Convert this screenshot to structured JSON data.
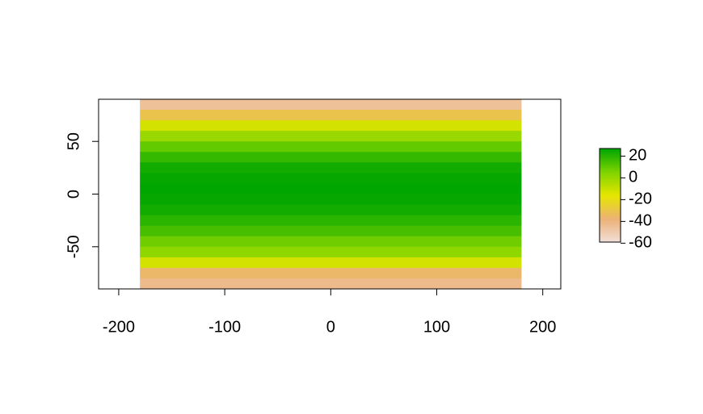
{
  "chart_data": {
    "type": "raster",
    "xlim": [
      -219,
      217
    ],
    "ylim": [
      -90,
      90
    ],
    "xticks": [
      -200,
      -100,
      0,
      100,
      200
    ],
    "yticks": [
      -50,
      0,
      50
    ],
    "lon_range": [
      -180,
      180
    ],
    "lat_bins": [
      90,
      80,
      70,
      60,
      50,
      40,
      30,
      20,
      10,
      0,
      -10,
      -20,
      -30,
      -40,
      -50,
      -60,
      -70,
      -80,
      -90
    ],
    "values": [
      -45,
      -30,
      -12,
      0,
      10,
      18,
      24,
      26,
      27,
      26,
      24,
      20,
      15,
      8,
      2,
      -12,
      -35,
      -42
    ],
    "zlim": [
      -59,
      27
    ],
    "zticks": [
      -60,
      -40,
      -20,
      0,
      20
    ],
    "colors": [
      "#F2E0DA",
      "#ECB176",
      "#E6E600",
      "#7FD300",
      "#00A600"
    ]
  }
}
